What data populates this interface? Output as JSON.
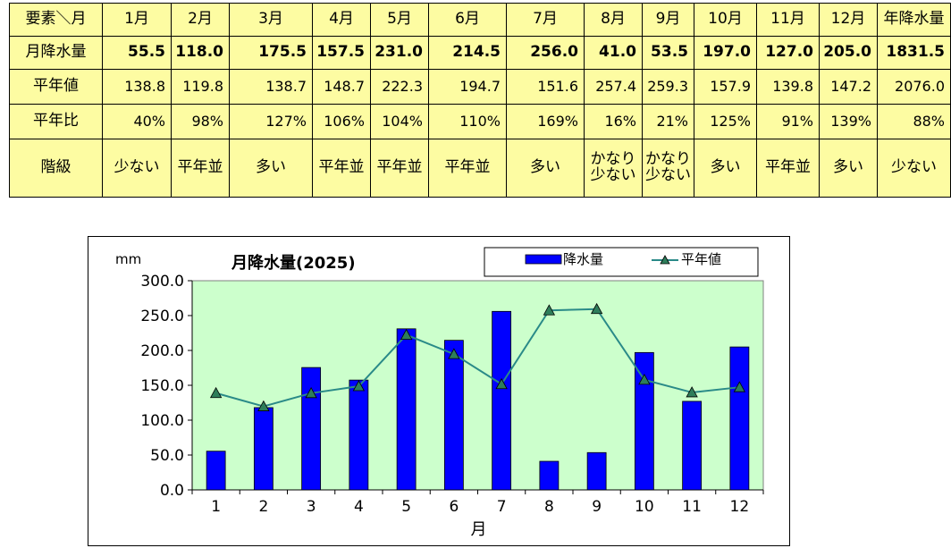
{
  "table": {
    "corner": "要素＼月",
    "months": [
      "1月",
      "2月",
      "3月",
      "4月",
      "5月",
      "6月",
      "7月",
      "8月",
      "9月",
      "10月",
      "11月",
      "12月"
    ],
    "annual_header": "年降水量",
    "rows": [
      {
        "label": "月降水量",
        "values": [
          "55.5",
          "118.0",
          "175.5",
          "157.5",
          "231.0",
          "214.5",
          "256.0",
          "41.0",
          "53.5",
          "197.0",
          "127.0",
          "205.0"
        ],
        "annual": "1831.5"
      },
      {
        "label": "平年値",
        "values": [
          "138.8",
          "119.8",
          "138.7",
          "148.7",
          "222.3",
          "194.7",
          "151.6",
          "257.4",
          "259.3",
          "157.9",
          "139.8",
          "147.2"
        ],
        "annual": "2076.0"
      },
      {
        "label": "平年比",
        "values": [
          "40%",
          "98%",
          "127%",
          "106%",
          "104%",
          "110%",
          "169%",
          "16%",
          "21%",
          "125%",
          "91%",
          "139%"
        ],
        "annual": "88%"
      },
      {
        "label": "階級",
        "values": [
          "少ない",
          "平年並",
          "多い",
          "平年並",
          "平年並",
          "平年並",
          "多い",
          "かなり少ない",
          "かなり少ない",
          "多い",
          "平年並",
          "多い"
        ],
        "annual": "少ない"
      }
    ]
  },
  "chart_data": {
    "type": "bar",
    "title": "月降水量(2025)",
    "ylabel": "mm",
    "xlabel": "月",
    "categories": [
      "1",
      "2",
      "3",
      "4",
      "5",
      "6",
      "7",
      "8",
      "9",
      "10",
      "11",
      "12"
    ],
    "ylim": [
      0,
      300
    ],
    "yticks": [
      "0.0",
      "50.0",
      "100.0",
      "150.0",
      "200.0",
      "250.0",
      "300.0"
    ],
    "series": [
      {
        "name": "降水量",
        "type": "bar",
        "color": "#0000ff",
        "values": [
          55.5,
          118.0,
          175.5,
          157.5,
          231.0,
          214.5,
          256.0,
          41.0,
          53.5,
          197.0,
          127.0,
          205.0
        ]
      },
      {
        "name": "平年値",
        "type": "line",
        "color": "#2a8a88",
        "marker_color": "#2e7d5a",
        "values": [
          138.8,
          119.8,
          138.7,
          148.7,
          222.3,
          194.7,
          151.6,
          257.4,
          259.3,
          157.9,
          139.8,
          147.2
        ]
      }
    ],
    "plot_background": "#ccffcc",
    "grid": false,
    "legend": "top-right"
  }
}
